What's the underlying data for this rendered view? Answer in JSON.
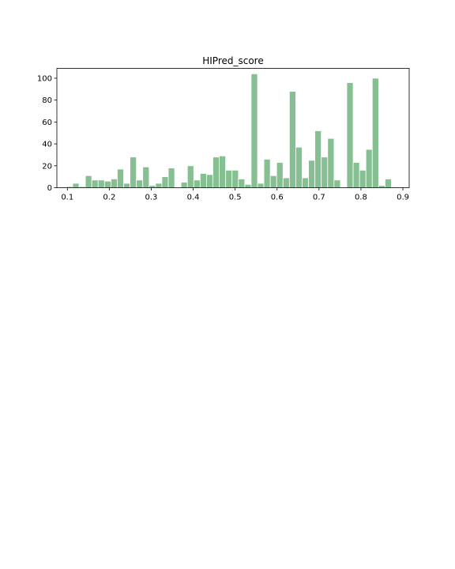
{
  "chart_data": {
    "type": "bar",
    "title": "HIPred_score",
    "xlabel": "",
    "ylabel": "",
    "xlim": [
      0.075,
      0.915
    ],
    "ylim": [
      0,
      109
    ],
    "grid": false,
    "legend": "none",
    "bar_color": "#86bf91",
    "bin_width": 0.0152,
    "xticks": [
      "0.1",
      "0.2",
      "0.3",
      "0.4",
      "0.5",
      "0.6",
      "0.7",
      "0.8",
      "0.9"
    ],
    "xtick_values": [
      0.1,
      0.2,
      0.3,
      0.4,
      0.5,
      0.6,
      0.7,
      0.8,
      0.9
    ],
    "yticks": [
      "0",
      "20",
      "40",
      "60",
      "80",
      "100"
    ],
    "ytick_values": [
      0,
      20,
      40,
      60,
      80,
      100
    ],
    "bin_starts": [
      0.0974,
      0.1126,
      0.1278,
      0.143,
      0.1582,
      0.1734,
      0.1886,
      0.2038,
      0.219,
      0.2342,
      0.2494,
      0.2646,
      0.2798,
      0.295,
      0.3102,
      0.3254,
      0.3406,
      0.3558,
      0.371,
      0.3862,
      0.4014,
      0.4166,
      0.4318,
      0.447,
      0.4622,
      0.4774,
      0.4926,
      0.5078,
      0.523,
      0.5382,
      0.5534,
      0.5686,
      0.5838,
      0.599,
      0.6142,
      0.6294,
      0.6446,
      0.6598,
      0.675,
      0.6902,
      0.7054,
      0.7206,
      0.7358,
      0.751,
      0.7662,
      0.7814,
      0.7966,
      0.8118,
      0.827,
      0.8422,
      0.8574
    ],
    "values": [
      1,
      4,
      1,
      11,
      7,
      7,
      6,
      8,
      17,
      4,
      28,
      7,
      19,
      2,
      4,
      10,
      18,
      0,
      5,
      20,
      7,
      13,
      12,
      28,
      29,
      16,
      16,
      8,
      3,
      104,
      4,
      26,
      11,
      23,
      9,
      88,
      37,
      9,
      25,
      52,
      28,
      45,
      7,
      0,
      96,
      23,
      16,
      35,
      100,
      2,
      8
    ]
  }
}
